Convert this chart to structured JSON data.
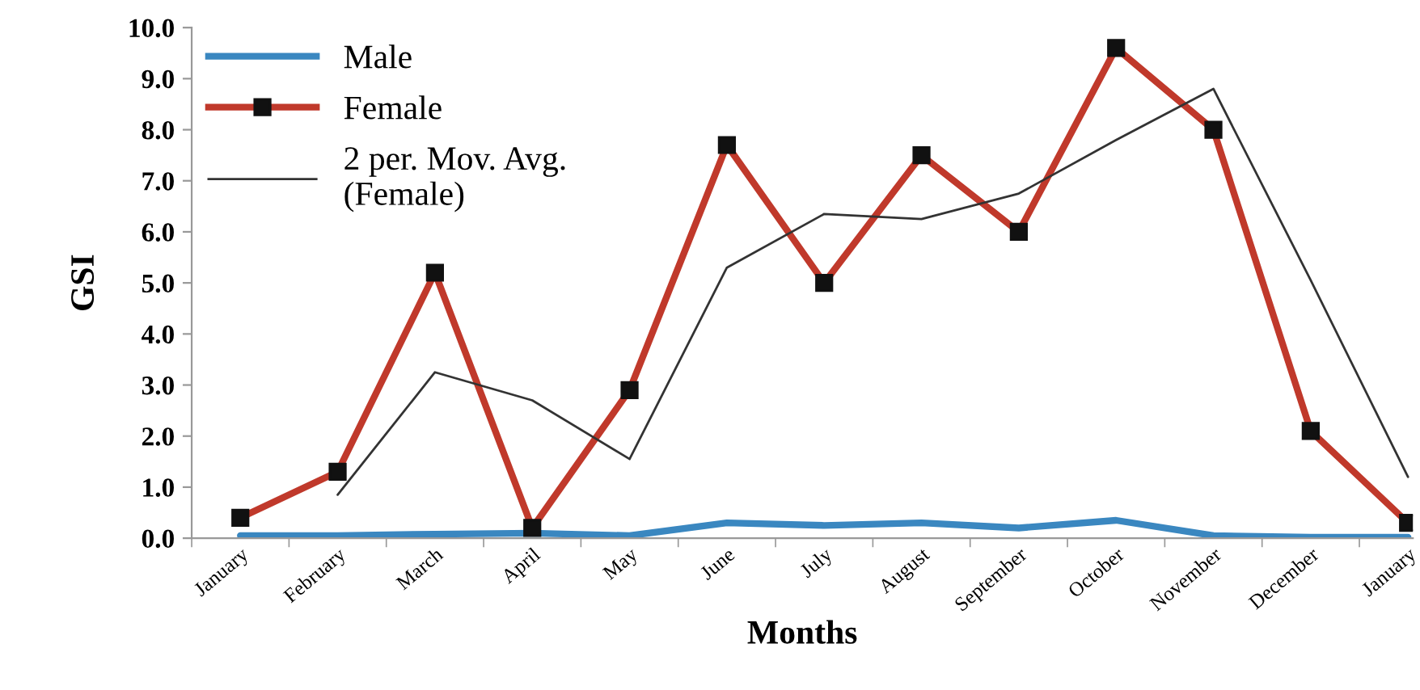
{
  "chart_data": {
    "type": "line",
    "xlabel": "Months",
    "ylabel": "GSI",
    "categories": [
      "January",
      "February",
      "March",
      "April",
      "May",
      "June",
      "July",
      "August",
      "September",
      "October",
      "November",
      "December",
      "January"
    ],
    "series": [
      {
        "name": "Male",
        "color": "#3a87c0",
        "values": [
          0.05,
          0.05,
          0.08,
          0.1,
          0.05,
          0.3,
          0.25,
          0.3,
          0.2,
          0.35,
          0.05,
          0.02,
          0.02
        ],
        "marker": "none"
      },
      {
        "name": "Female",
        "color": "#c0392b",
        "values": [
          0.4,
          1.3,
          5.2,
          0.2,
          2.9,
          7.7,
          5.0,
          7.5,
          6.0,
          9.6,
          8.0,
          2.1,
          0.3
        ],
        "marker": "square"
      },
      {
        "name": "2 per. Mov. Avg. (Female)",
        "color": "#333333",
        "values": [
          null,
          0.85,
          3.25,
          2.7,
          1.55,
          5.3,
          6.35,
          6.25,
          6.75,
          7.8,
          8.8,
          5.05,
          1.2
        ],
        "marker": "none"
      }
    ],
    "ylim": [
      0,
      10
    ],
    "yticks": [
      {
        "value": 0,
        "label": "0.0"
      },
      {
        "value": 1,
        "label": "1.0"
      },
      {
        "value": 2,
        "label": "2.0"
      },
      {
        "value": 3,
        "label": "3.0"
      },
      {
        "value": 4,
        "label": "4.0"
      },
      {
        "value": 5,
        "label": "5.0"
      },
      {
        "value": 6,
        "label": "6.0"
      },
      {
        "value": 7,
        "label": "7.0"
      },
      {
        "value": 8,
        "label": "8.0"
      },
      {
        "value": 9,
        "label": "9.0"
      },
      {
        "value": 10,
        "label": "10.0"
      }
    ],
    "grid": false,
    "legend": "top left",
    "line_style": "solid"
  }
}
